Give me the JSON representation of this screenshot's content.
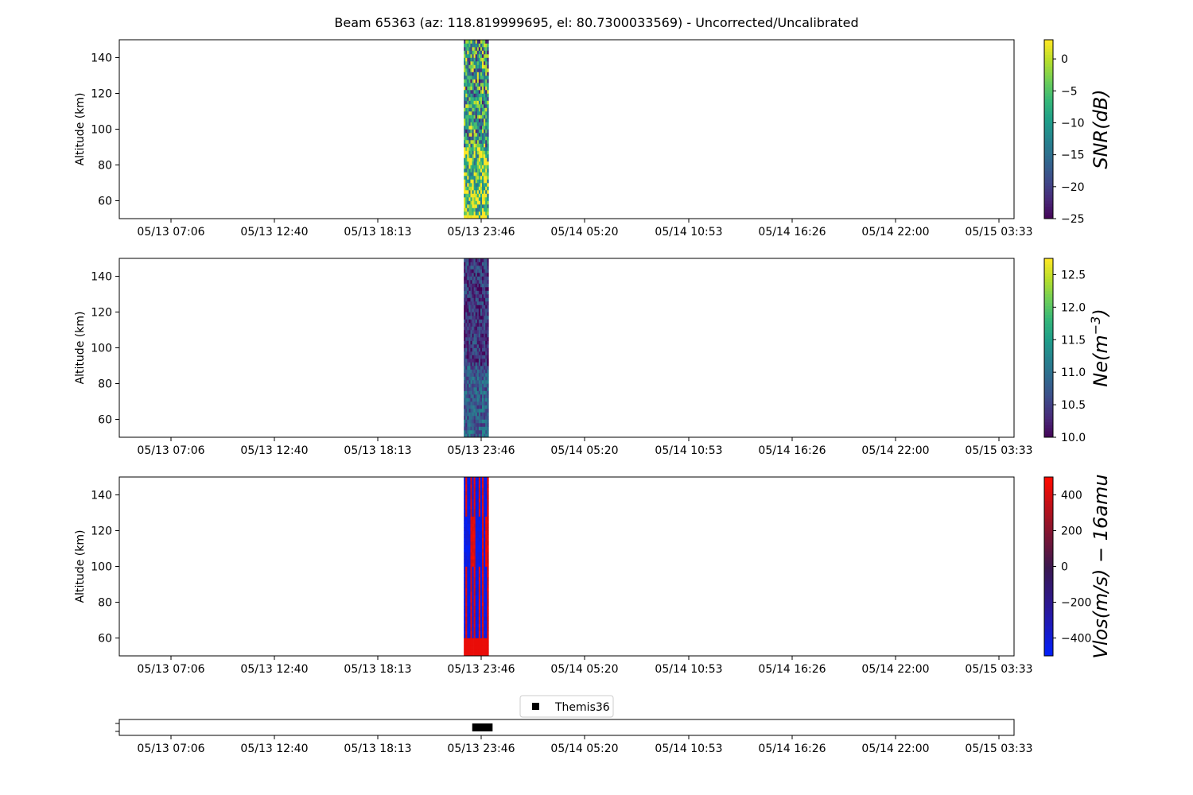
{
  "title": "Beam 65363 (az: 118.819999695, el: 80.7300033569) - Uncorrected/Uncalibrated",
  "chart_data": [
    {
      "type": "heatmap",
      "key": "snr",
      "ylabel": "Altitude (km)",
      "ylim": [
        50,
        150
      ],
      "yticks": [
        60,
        80,
        100,
        120,
        140
      ],
      "x_tick_labels": [
        "05/13 07:06",
        "05/13 12:40",
        "05/13 18:13",
        "05/13 23:46",
        "05/14 05:20",
        "05/14 10:53",
        "05/14 16:26",
        "05/14 22:00",
        "05/15 03:33"
      ],
      "data_time_range": [
        "05/13 22:50",
        "05/14 00:10"
      ],
      "colormap": "viridis",
      "colorbar": {
        "label": "SNR(dB)",
        "min": -25,
        "max": 3,
        "ticks": [
          0,
          -5,
          -10,
          -15,
          -20,
          -25
        ],
        "tick_labels": [
          "0",
          "−5",
          "−10",
          "−15",
          "−20",
          "−25"
        ]
      }
    },
    {
      "type": "heatmap",
      "key": "ne",
      "ylabel": "Altitude (km)",
      "ylim": [
        50,
        150
      ],
      "yticks": [
        60,
        80,
        100,
        120,
        140
      ],
      "x_tick_labels": [
        "05/13 07:06",
        "05/13 12:40",
        "05/13 18:13",
        "05/13 23:46",
        "05/14 05:20",
        "05/14 10:53",
        "05/14 16:26",
        "05/14 22:00",
        "05/15 03:33"
      ],
      "data_time_range": [
        "05/13 22:50",
        "05/14 00:10"
      ],
      "colormap": "viridis",
      "colorbar": {
        "label": "Ne(m^-3)",
        "min": 10.0,
        "max": 12.75,
        "ticks": [
          12.5,
          12.0,
          11.5,
          11.0,
          10.5,
          10.0
        ],
        "tick_labels": [
          "12.5",
          "12.0",
          "11.5",
          "11.0",
          "10.5",
          "10.0"
        ]
      }
    },
    {
      "type": "heatmap",
      "key": "vlos",
      "ylabel": "Altitude (km)",
      "ylim": [
        50,
        150
      ],
      "yticks": [
        60,
        80,
        100,
        120,
        140
      ],
      "x_tick_labels": [
        "05/13 07:06",
        "05/13 12:40",
        "05/13 18:13",
        "05/13 23:46",
        "05/14 05:20",
        "05/14 10:53",
        "05/14 16:26",
        "05/14 22:00",
        "05/15 03:33"
      ],
      "data_time_range": [
        "05/13 22:50",
        "05/14 00:10"
      ],
      "colormap": "blue-red",
      "colorbar": {
        "label": "Vlos(m/s) − 16amu",
        "min": -500,
        "max": 500,
        "ticks": [
          400,
          200,
          0,
          -200,
          -400
        ],
        "tick_labels": [
          "400",
          "200",
          "0",
          "−200",
          "−400"
        ]
      }
    },
    {
      "type": "scatter",
      "key": "themis",
      "legend": [
        "Themis36"
      ],
      "legend_placement": "top-center",
      "x_tick_labels": [
        "05/13 07:06",
        "05/13 12:40",
        "05/13 18:13",
        "05/13 23:46",
        "05/14 05:20",
        "05/14 10:53",
        "05/14 16:26",
        "05/14 22:00",
        "05/15 03:33"
      ],
      "series": [
        {
          "name": "Themis36",
          "x_range": [
            "05/13 23:30",
            "05/14 00:10"
          ],
          "marker": "square",
          "color": "#000000"
        }
      ]
    }
  ]
}
